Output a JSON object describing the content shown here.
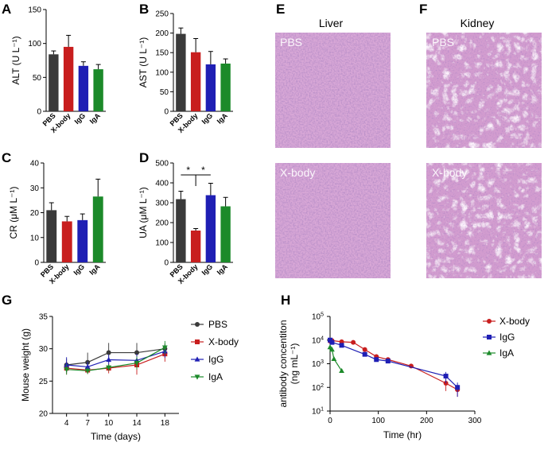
{
  "panels": {
    "A": "A",
    "B": "B",
    "C": "C",
    "D": "D",
    "E": "E",
    "F": "F",
    "G": "G",
    "H": "H"
  },
  "colors": {
    "PBS": "#3a3a3a",
    "X-body": "#c81e1e",
    "IgG": "#1f1fb4",
    "IgA": "#1c8a2a"
  },
  "chart_data": [
    {
      "id": "A",
      "type": "bar",
      "categories": [
        "PBS",
        "X-body",
        "IgG",
        "IgA"
      ],
      "values": [
        84,
        95,
        67,
        62
      ],
      "errors": [
        5,
        17,
        6,
        7
      ],
      "ylabel": "ALT (U L⁻¹)",
      "ylim": [
        0,
        150
      ],
      "yticks": [
        0,
        50,
        100,
        150
      ]
    },
    {
      "id": "B",
      "type": "bar",
      "categories": [
        "PBS",
        "X-body",
        "IgG",
        "IgA"
      ],
      "values": [
        198,
        151,
        120,
        122
      ],
      "errors": [
        15,
        35,
        33,
        12
      ],
      "ylabel": "AST (U L⁻¹)",
      "ylim": [
        0,
        250
      ],
      "yticks": [
        0,
        50,
        100,
        150,
        200,
        250
      ]
    },
    {
      "id": "C",
      "type": "bar",
      "categories": [
        "PBS",
        "X-body",
        "IgG",
        "IgA"
      ],
      "values": [
        21,
        16.5,
        17,
        26.5
      ],
      "errors": [
        3,
        2,
        2.5,
        7
      ],
      "ylabel": "CR (μM L⁻¹)",
      "ylim": [
        0,
        40
      ],
      "yticks": [
        0,
        10,
        20,
        30,
        40
      ]
    },
    {
      "id": "D",
      "type": "bar",
      "categories": [
        "PBS",
        "X-body",
        "IgG",
        "IgA"
      ],
      "values": [
        318,
        160,
        338,
        282
      ],
      "errors": [
        40,
        10,
        60,
        45
      ],
      "ylabel": "UA (μM L⁻¹)",
      "ylim": [
        0,
        500
      ],
      "yticks": [
        0,
        100,
        200,
        300,
        400,
        500
      ],
      "annotations": [
        "*",
        "*"
      ]
    },
    {
      "id": "G",
      "type": "line",
      "xlabel": "Time (days)",
      "ylabel": "Mouse weight (g)",
      "x": [
        4,
        7,
        10,
        14,
        18
      ],
      "xticks": [
        4,
        7,
        10,
        14,
        18
      ],
      "ylim": [
        20,
        35
      ],
      "yticks": [
        20,
        25,
        30,
        35
      ],
      "series": [
        {
          "name": "PBS",
          "values": [
            27.5,
            27.9,
            29.4,
            29.4,
            30.0
          ],
          "errors": [
            1.0,
            1.5,
            1.5,
            1.5,
            0.8
          ]
        },
        {
          "name": "X-body",
          "values": [
            27.0,
            26.7,
            27.0,
            27.5,
            29.2
          ],
          "errors": [
            1.0,
            0.6,
            0.8,
            1.5,
            1.2
          ]
        },
        {
          "name": "IgG",
          "values": [
            27.5,
            27.2,
            28.3,
            28.2,
            29.6
          ],
          "errors": [
            1.2,
            0.8,
            0.8,
            1.0,
            1.0
          ]
        },
        {
          "name": "IgA",
          "values": [
            26.8,
            26.6,
            27.1,
            27.8,
            30.2
          ],
          "errors": [
            0.8,
            0.5,
            0.5,
            1.0,
            1.0
          ]
        }
      ]
    },
    {
      "id": "H",
      "type": "line",
      "xlabel": "Time (hr)",
      "ylabel_line1": "antibody concentiton",
      "ylabel_line2": "(ng mL⁻¹)",
      "xlim": [
        0,
        300
      ],
      "xticks": [
        0,
        100,
        200,
        300
      ],
      "yscale": "log",
      "ylim": [
        10,
        100000
      ],
      "yticks": [
        {
          "base": "10",
          "exp": "1"
        },
        {
          "base": "10",
          "exp": "2"
        },
        {
          "base": "10",
          "exp": "3"
        },
        {
          "base": "10",
          "exp": "4"
        },
        {
          "base": "10",
          "exp": "5"
        }
      ],
      "series": [
        {
          "name": "X-body",
          "x": [
            0,
            4,
            24,
            48,
            72,
            96,
            120,
            168,
            240,
            264
          ],
          "values": [
            9000,
            9500,
            8500,
            8000,
            4000,
            2000,
            1500,
            800,
            150,
            80
          ],
          "errors": [
            1000,
            1000,
            900,
            900,
            500,
            300,
            200,
            120,
            80,
            40
          ]
        },
        {
          "name": "IgG",
          "x": [
            0,
            4,
            24,
            72,
            96,
            120,
            240,
            264
          ],
          "values": [
            10000,
            8000,
            6000,
            2500,
            1500,
            1300,
            300,
            100
          ],
          "errors": [
            1000,
            1000,
            800,
            400,
            250,
            200,
            150,
            60
          ]
        },
        {
          "name": "IgA",
          "x": [
            0,
            4,
            8,
            24
          ],
          "values": [
            5000,
            4000,
            1600,
            500
          ],
          "errors": [
            0,
            0,
            0,
            0
          ]
        }
      ]
    }
  ],
  "histology": {
    "E_title": "Liver",
    "F_title": "Kidney",
    "E_top": "PBS",
    "E_bottom": "X-body",
    "F_top": "PBS",
    "F_bottom": "X-body"
  }
}
